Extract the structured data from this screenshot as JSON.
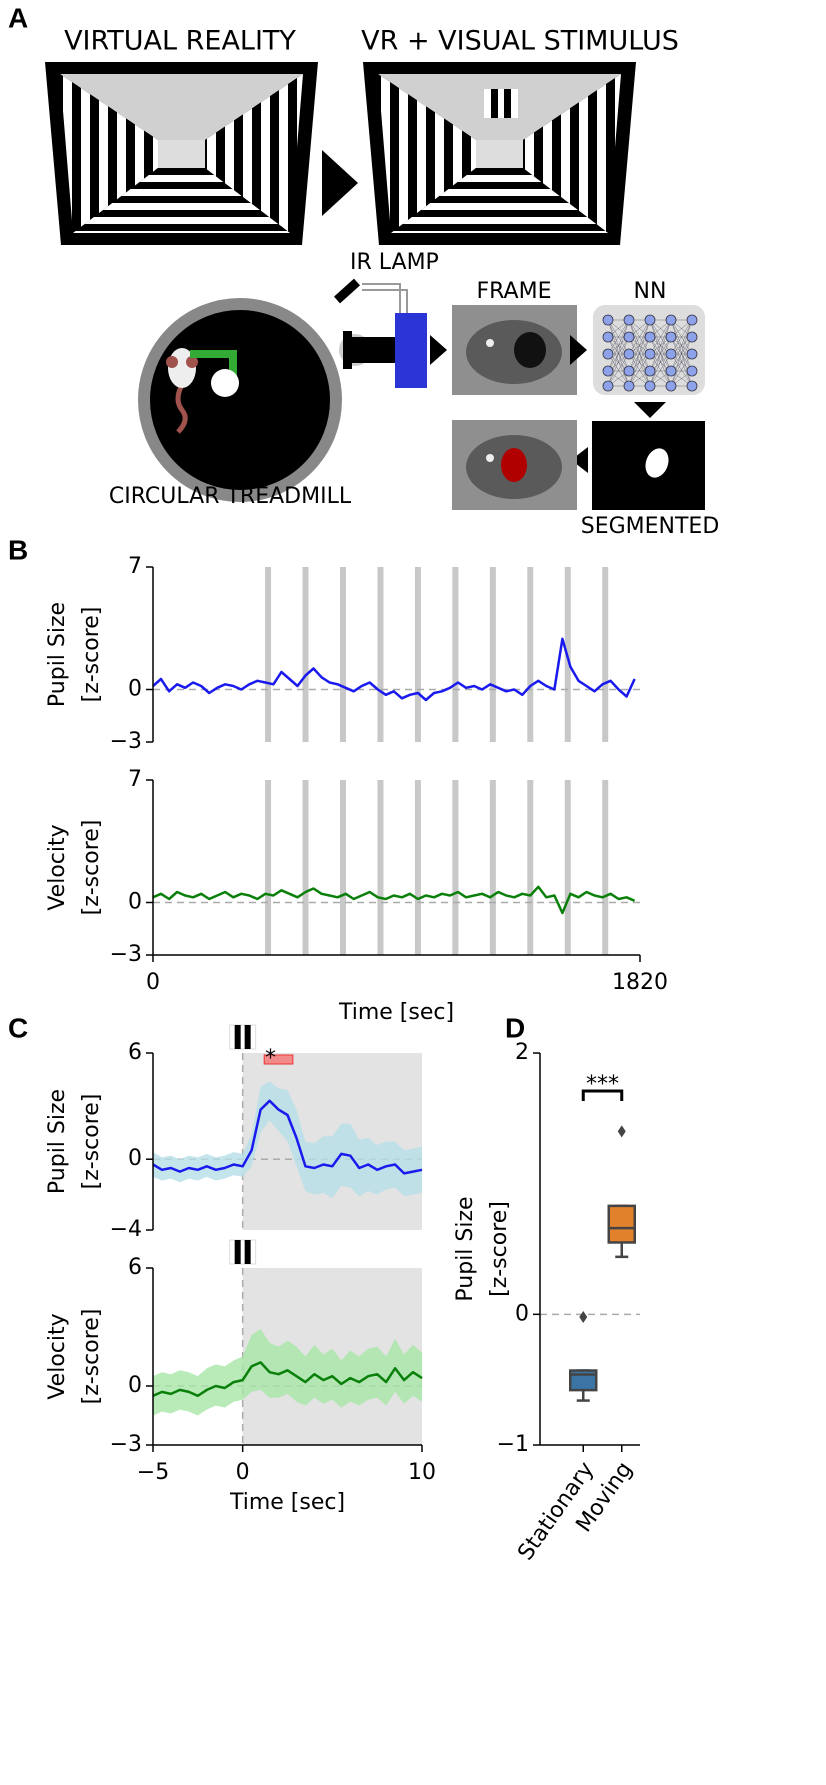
{
  "panel_a": {
    "label": "A",
    "titles": [
      "VIRTUAL REALITY",
      "VR + VISUAL STIMULUS"
    ],
    "labels": {
      "ir_lamp": "IR LAMP",
      "frame": "FRAME",
      "nn": "NN",
      "treadmill": "CIRCULAR TREADMILL",
      "segmented": "SEGMENTED"
    }
  },
  "chart_data": [
    {
      "type": "line",
      "panel": "B",
      "ylabel": [
        "Pupil Size",
        "[z-score]"
      ],
      "color": "#1a1aee",
      "xlim": [
        0,
        1820
      ],
      "ylim": [
        -3,
        7
      ],
      "yticks": [
        7,
        0,
        {
          "value": -3,
          "label": "−3"
        }
      ],
      "hline": 0,
      "stimulus_times": [
        430,
        570,
        710,
        850,
        990,
        1130,
        1270,
        1410,
        1550,
        1690
      ],
      "x": [
        0,
        30,
        60,
        90,
        120,
        150,
        180,
        210,
        240,
        270,
        300,
        330,
        360,
        390,
        420,
        450,
        480,
        510,
        540,
        570,
        600,
        630,
        660,
        690,
        720,
        750,
        780,
        810,
        840,
        870,
        900,
        930,
        960,
        990,
        1020,
        1050,
        1080,
        1110,
        1140,
        1170,
        1200,
        1230,
        1260,
        1290,
        1320,
        1350,
        1380,
        1410,
        1440,
        1470,
        1500,
        1530,
        1560,
        1590,
        1620,
        1650,
        1680,
        1710,
        1740,
        1770,
        1800
      ],
      "values": [
        0.2,
        0.6,
        -0.1,
        0.3,
        0.1,
        0.4,
        0.2,
        -0.2,
        0.1,
        0.3,
        0.2,
        0.0,
        0.3,
        0.5,
        0.4,
        0.3,
        1.0,
        0.6,
        0.2,
        0.8,
        1.2,
        0.7,
        0.4,
        0.3,
        0.1,
        -0.1,
        0.2,
        0.4,
        0.0,
        -0.3,
        -0.1,
        -0.5,
        -0.3,
        -0.2,
        -0.6,
        -0.2,
        -0.1,
        0.1,
        0.4,
        0.1,
        0.2,
        0.0,
        0.3,
        0.1,
        -0.1,
        0.0,
        -0.3,
        0.2,
        0.5,
        0.2,
        0.0,
        2.9,
        1.3,
        0.5,
        0.2,
        -0.1,
        0.3,
        0.5,
        0.0,
        -0.4,
        0.6
      ]
    },
    {
      "type": "line",
      "ylabel": [
        "Velocity",
        "[z-score]"
      ],
      "color": "#0a800a",
      "xlabel": "Time [sec]",
      "xlim": [
        0,
        1820
      ],
      "xticks": [
        0,
        1820
      ],
      "ylim": [
        -3,
        7
      ],
      "yticks": [
        7,
        0,
        {
          "value": -3,
          "label": "−3"
        }
      ],
      "hline": 0,
      "stimulus_times": [
        430,
        570,
        710,
        850,
        990,
        1130,
        1270,
        1410,
        1550,
        1690
      ],
      "x": [
        0,
        30,
        60,
        90,
        120,
        150,
        180,
        210,
        240,
        270,
        300,
        330,
        360,
        390,
        420,
        450,
        480,
        510,
        540,
        570,
        600,
        630,
        660,
        690,
        720,
        750,
        780,
        810,
        840,
        870,
        900,
        930,
        960,
        990,
        1020,
        1050,
        1080,
        1110,
        1140,
        1170,
        1200,
        1230,
        1260,
        1290,
        1320,
        1350,
        1380,
        1410,
        1440,
        1470,
        1500,
        1530,
        1560,
        1590,
        1620,
        1650,
        1680,
        1710,
        1740,
        1770,
        1800
      ],
      "values": [
        0.3,
        0.5,
        0.2,
        0.6,
        0.4,
        0.3,
        0.5,
        0.2,
        0.4,
        0.6,
        0.3,
        0.5,
        0.4,
        0.2,
        0.5,
        0.4,
        0.7,
        0.5,
        0.3,
        0.6,
        0.8,
        0.5,
        0.4,
        0.3,
        0.5,
        0.2,
        0.4,
        0.6,
        0.3,
        0.2,
        0.4,
        0.3,
        0.5,
        0.2,
        0.4,
        0.3,
        0.5,
        0.4,
        0.6,
        0.3,
        0.4,
        0.5,
        0.3,
        0.6,
        0.4,
        0.3,
        0.5,
        0.4,
        0.9,
        0.3,
        0.4,
        -0.6,
        0.5,
        0.3,
        0.6,
        0.4,
        0.3,
        0.5,
        0.2,
        0.3,
        0.1
      ]
    },
    {
      "type": "line",
      "panel": "C",
      "ylabel": [
        "Pupil Size",
        "[z-score]"
      ],
      "color": "#1a1aee",
      "band_color": "#b5dfe6",
      "xlim": [
        -5,
        10
      ],
      "ylim": [
        -4,
        6
      ],
      "yticks": [
        6,
        0,
        {
          "value": -4,
          "label": "−4"
        }
      ],
      "hline": 0,
      "vline": 0,
      "stimulus_window": [
        0,
        10
      ],
      "sig_window": [
        1.2,
        2.8
      ],
      "sig_label": "*",
      "x": [
        -5,
        -4.5,
        -4,
        -3.5,
        -3,
        -2.5,
        -2,
        -1.5,
        -1,
        -0.5,
        0,
        0.5,
        1,
        1.5,
        2,
        2.5,
        3,
        3.5,
        4,
        4.5,
        5,
        5.5,
        6,
        6.5,
        7,
        7.5,
        8,
        8.5,
        9,
        9.5,
        10
      ],
      "values": [
        -0.3,
        -0.6,
        -0.5,
        -0.7,
        -0.5,
        -0.6,
        -0.4,
        -0.6,
        -0.5,
        -0.3,
        -0.4,
        0.5,
        2.8,
        3.3,
        2.8,
        2.5,
        1.2,
        -0.4,
        -0.5,
        -0.3,
        -0.4,
        0.3,
        0.2,
        -0.5,
        -0.3,
        -0.6,
        -0.4,
        -0.3,
        -0.8,
        -0.7,
        -0.6
      ],
      "band_lower": [
        -1,
        -1.2,
        -1.1,
        -1.3,
        -1.1,
        -1.2,
        -1,
        -1.2,
        -1.1,
        -0.9,
        -1,
        -0.4,
        1.5,
        2.2,
        1.6,
        1.0,
        -0.4,
        -1.8,
        -2,
        -1.9,
        -2.2,
        -1.5,
        -1.6,
        -2.1,
        -1.8,
        -2.0,
        -1.7,
        -1.6,
        -2.1,
        -2.0,
        -1.9
      ],
      "band_upper": [
        0.4,
        0.1,
        0.2,
        0,
        0.2,
        0.1,
        0.3,
        0.1,
        0.2,
        0.4,
        0.3,
        1.4,
        4.1,
        4.4,
        4.0,
        3.9,
        2.8,
        1.0,
        0.9,
        1.3,
        1.3,
        2.0,
        2.0,
        1.1,
        1.2,
        0.8,
        1.0,
        1.0,
        0.5,
        0.6,
        0.7
      ]
    },
    {
      "type": "line",
      "ylabel": [
        "Velocity",
        "[z-score]"
      ],
      "color": "#0a800a",
      "band_color": "#a8e6a8",
      "xlabel": "Time [sec]",
      "xlim": [
        -5,
        10
      ],
      "xticks": [
        {
          "value": -5,
          "label": "−5"
        },
        0,
        10
      ],
      "ylim": [
        -3,
        6
      ],
      "yticks": [
        6,
        0,
        {
          "value": -3,
          "label": "−3"
        }
      ],
      "hline": 0,
      "vline": 0,
      "stimulus_window": [
        0,
        10
      ],
      "x": [
        -5,
        -4.5,
        -4,
        -3.5,
        -3,
        -2.5,
        -2,
        -1.5,
        -1,
        -0.5,
        0,
        0.5,
        1,
        1.5,
        2,
        2.5,
        3,
        3.5,
        4,
        4.5,
        5,
        5.5,
        6,
        6.5,
        7,
        7.5,
        8,
        8.5,
        9,
        9.5,
        10
      ],
      "values": [
        -0.5,
        -0.3,
        -0.4,
        -0.2,
        -0.3,
        -0.5,
        -0.2,
        0.0,
        -0.1,
        0.2,
        0.3,
        1.0,
        1.2,
        0.7,
        0.6,
        0.8,
        0.5,
        0.2,
        0.6,
        0.3,
        0.5,
        0.1,
        0.4,
        0.2,
        0.5,
        0.6,
        0.2,
        0.9,
        0.3,
        0.7,
        0.4
      ],
      "band_lower": [
        -1.5,
        -1.3,
        -1.4,
        -1.2,
        -1.3,
        -1.5,
        -1.2,
        -1.0,
        -1.1,
        -0.8,
        -0.7,
        -0.3,
        -0.2,
        -0.6,
        -0.6,
        -0.4,
        -0.8,
        -1.0,
        -0.6,
        -0.9,
        -0.7,
        -1.1,
        -0.8,
        -1.0,
        -0.7,
        -0.6,
        -1.0,
        -0.3,
        -0.9,
        -0.5,
        -0.8
      ],
      "band_upper": [
        0.5,
        0.7,
        0.6,
        0.8,
        0.7,
        0.5,
        0.9,
        1.1,
        1.0,
        1.3,
        1.5,
        2.6,
        2.9,
        2.2,
        2.0,
        2.3,
        2.0,
        1.5,
        2.1,
        1.6,
        1.9,
        1.3,
        1.8,
        1.5,
        1.9,
        2.0,
        1.5,
        2.4,
        1.6,
        2.1,
        1.7
      ]
    },
    {
      "type": "box",
      "panel": "D",
      "ylabel": [
        "Pupil Size",
        "[z-score]"
      ],
      "ylim": [
        -1,
        2
      ],
      "yticks": [
        {
          "value": -1,
          "label": "−1"
        },
        0,
        2
      ],
      "hline": 0,
      "sig_label": "***",
      "categories": [
        "Stationary",
        "Moving"
      ],
      "colors": [
        "#3a75a6",
        "#e1812c"
      ],
      "boxes": [
        {
          "whislo": -0.66,
          "q1": -0.58,
          "med": -0.46,
          "q3": -0.43,
          "whishi": -0.43,
          "fliers": [
            -0.02
          ]
        },
        {
          "whislo": 0.44,
          "q1": 0.55,
          "med": 0.66,
          "q3": 0.83,
          "whishi": 0.83,
          "fliers": [
            1.4
          ]
        }
      ]
    }
  ]
}
